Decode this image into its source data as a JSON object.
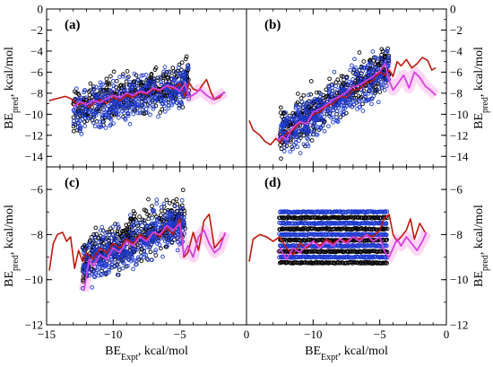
{
  "chart_data": {
    "type": "scatter",
    "layout": "2x2 shared axes",
    "xlabel": {
      "main": "BE",
      "sub": "Expt",
      "rest": ", kcal/mol"
    },
    "ylabel": {
      "main": "BE",
      "sub": "pred",
      "rest": ", kcal/mol"
    },
    "xlim": [
      -15,
      0
    ],
    "xticks": [
      "-15",
      "-10",
      "-5",
      "0"
    ],
    "colors": {
      "black_points": "#000000",
      "blue_points": "#1f3bd1",
      "red_line": "#c0180c",
      "magenta_line": "#d640e0",
      "pink_band": "#ffb4ee"
    },
    "panels": [
      {
        "label": "(a)",
        "ylim": [
          -15,
          0
        ],
        "yticks": [
          "0",
          "-2",
          "-4",
          "-6",
          "-8",
          "-10",
          "-12",
          "-14"
        ],
        "red_line": [
          [
            -14.8,
            -8.7
          ],
          [
            -14.2,
            -8.5
          ],
          [
            -13.6,
            -8.3
          ],
          [
            -13.2,
            -8.5
          ],
          [
            -12.9,
            -8.8
          ],
          [
            -12.6,
            -9.1
          ],
          [
            -12.2,
            -8.9
          ],
          [
            -11.8,
            -9.3
          ],
          [
            -11.4,
            -8.9
          ],
          [
            -11,
            -8.6
          ],
          [
            -10.5,
            -9
          ],
          [
            -10,
            -8.4
          ],
          [
            -9.5,
            -8.7
          ],
          [
            -9,
            -8.2
          ],
          [
            -8.5,
            -8.4
          ],
          [
            -8,
            -7.9
          ],
          [
            -7.5,
            -8.1
          ],
          [
            -7,
            -7.6
          ],
          [
            -6.5,
            -7.8
          ],
          [
            -6,
            -7.3
          ],
          [
            -5.5,
            -7.6
          ],
          [
            -5,
            -7.1
          ],
          [
            -4.6,
            -8.3
          ],
          [
            -4.3,
            -7
          ],
          [
            -4,
            -7.6
          ],
          [
            -3.6,
            -7.8
          ],
          [
            -3.3,
            -7.2
          ],
          [
            -3,
            -6.7
          ],
          [
            -2.7,
            -7.8
          ],
          [
            -2.4,
            -8.6
          ],
          [
            -2,
            -8.4
          ],
          [
            -1.7,
            -7.9
          ]
        ],
        "magenta_line": [
          [
            -13,
            -9.3
          ],
          [
            -12.5,
            -8.8
          ],
          [
            -12,
            -9.1
          ],
          [
            -11.5,
            -8.7
          ],
          [
            -11,
            -8.9
          ],
          [
            -10.5,
            -8.5
          ],
          [
            -10,
            -8.2
          ],
          [
            -9.5,
            -8.4
          ],
          [
            -9,
            -8
          ],
          [
            -8.5,
            -8.2
          ],
          [
            -8,
            -7.8
          ],
          [
            -7.5,
            -8
          ],
          [
            -7,
            -7.5
          ],
          [
            -6.5,
            -7.7
          ],
          [
            -6,
            -7.3
          ],
          [
            -5.5,
            -7.4
          ],
          [
            -5,
            -7.8
          ],
          [
            -4.6,
            -7.1
          ],
          [
            -4.3,
            -8.4
          ],
          [
            -3.8,
            -8
          ],
          [
            -3.5,
            -7.6
          ],
          [
            -3,
            -8.2
          ],
          [
            -2.5,
            -8.6
          ],
          [
            -2,
            -8.2
          ],
          [
            -1.6,
            -7.9
          ]
        ],
        "cloud": {
          "x_range": [
            -13,
            -4.3
          ],
          "center": [
            [
              -13,
              -9.8
            ],
            [
              -4.5,
              -7.0
            ]
          ],
          "spread": 1.4,
          "black_shift": 0.25
        }
      },
      {
        "label": "(b)",
        "ylim": [
          -15,
          0
        ],
        "yticks": [
          "0",
          "-2",
          "-4",
          "-6",
          "-8",
          "-10",
          "-12",
          "-14"
        ],
        "red_line": [
          [
            -14.8,
            -10.6
          ],
          [
            -14.5,
            -11.5
          ],
          [
            -14,
            -12
          ],
          [
            -13.6,
            -12.6
          ],
          [
            -13.2,
            -12.9
          ],
          [
            -12.8,
            -12.3
          ],
          [
            -12.5,
            -12.7
          ],
          [
            -12,
            -11.8
          ],
          [
            -11.5,
            -11.5
          ],
          [
            -11,
            -10.8
          ],
          [
            -10.5,
            -10.9
          ],
          [
            -10,
            -10
          ],
          [
            -9.5,
            -9.8
          ],
          [
            -9,
            -9.2
          ],
          [
            -8.5,
            -9
          ],
          [
            -8,
            -8.3
          ],
          [
            -7.5,
            -8.4
          ],
          [
            -7,
            -7.7
          ],
          [
            -6.5,
            -7.6
          ],
          [
            -6,
            -7
          ],
          [
            -5.5,
            -6.8
          ],
          [
            -5,
            -6
          ],
          [
            -4.6,
            -6.3
          ],
          [
            -4.3,
            -5.8
          ],
          [
            -4,
            -6.4
          ],
          [
            -3.7,
            -5
          ],
          [
            -3.4,
            -5.4
          ],
          [
            -3,
            -4.8
          ],
          [
            -2.6,
            -5.6
          ],
          [
            -2.2,
            -5.2
          ],
          [
            -1.8,
            -4.6
          ],
          [
            -1.4,
            -4.9
          ],
          [
            -1.1,
            -5.8
          ],
          [
            -0.8,
            -5.6
          ]
        ],
        "magenta_line": [
          [
            -12.7,
            -12.5
          ],
          [
            -12.3,
            -12.1
          ],
          [
            -12,
            -12.4
          ],
          [
            -11.5,
            -11.2
          ],
          [
            -11,
            -10.7
          ],
          [
            -10.5,
            -10.9
          ],
          [
            -10,
            -9.8
          ],
          [
            -9.5,
            -9.5
          ],
          [
            -9,
            -9.1
          ],
          [
            -8.5,
            -8.6
          ],
          [
            -8,
            -8.3
          ],
          [
            -7.5,
            -7.9
          ],
          [
            -7,
            -7.4
          ],
          [
            -6.5,
            -7.2
          ],
          [
            -6,
            -6.8
          ],
          [
            -5.5,
            -6.4
          ],
          [
            -5,
            -5.9
          ],
          [
            -4.6,
            -5.2
          ],
          [
            -4.3,
            -6.8
          ],
          [
            -4,
            -7.7
          ],
          [
            -3.6,
            -7
          ],
          [
            -3.2,
            -6.3
          ],
          [
            -2.8,
            -7.5
          ],
          [
            -2.4,
            -6
          ],
          [
            -2,
            -6.5
          ],
          [
            -1.6,
            -7.3
          ],
          [
            -1.2,
            -7.7
          ],
          [
            -0.8,
            -8.2
          ]
        ],
        "cloud": {
          "x_range": [
            -12.5,
            -4.3
          ],
          "center": [
            [
              -12.5,
              -12.0
            ],
            [
              -4.5,
              -5.6
            ]
          ],
          "spread": 1.5,
          "black_shift": 0.2
        }
      },
      {
        "label": "(c)",
        "ylim": [
          -12,
          -5
        ],
        "yticks": [
          "-6",
          "-8",
          "-10",
          "-12"
        ],
        "red_line": [
          [
            -14.8,
            -9.6
          ],
          [
            -14.5,
            -8.4
          ],
          [
            -14.2,
            -8
          ],
          [
            -13.8,
            -7.9
          ],
          [
            -13.5,
            -8.3
          ],
          [
            -13.2,
            -8.1
          ],
          [
            -12.9,
            -9.5
          ],
          [
            -12.6,
            -8.7
          ],
          [
            -12.3,
            -9.2
          ],
          [
            -12,
            -8.8
          ],
          [
            -11.5,
            -9.1
          ],
          [
            -11,
            -8.6
          ],
          [
            -10.5,
            -8.8
          ],
          [
            -10,
            -8.4
          ],
          [
            -9.5,
            -8.6
          ],
          [
            -9,
            -8.2
          ],
          [
            -8.5,
            -8.4
          ],
          [
            -8,
            -8
          ],
          [
            -7.5,
            -8.2
          ],
          [
            -7,
            -7.9
          ],
          [
            -6.5,
            -8.1
          ],
          [
            -6,
            -7.7
          ],
          [
            -5.5,
            -8
          ],
          [
            -5,
            -7.3
          ],
          [
            -4.7,
            -9
          ],
          [
            -4.4,
            -8.8
          ],
          [
            -4,
            -7.9
          ],
          [
            -3.6,
            -8.7
          ],
          [
            -3.2,
            -7.4
          ],
          [
            -2.8,
            -7.1
          ],
          [
            -2.4,
            -8.6
          ],
          [
            -2,
            -8.3
          ],
          [
            -1.6,
            -8
          ]
        ],
        "magenta_line": [
          [
            -12.2,
            -10.5
          ],
          [
            -11.8,
            -9.1
          ],
          [
            -11.5,
            -9.4
          ],
          [
            -11,
            -8.9
          ],
          [
            -10.5,
            -9.1
          ],
          [
            -10,
            -8.6
          ],
          [
            -9.5,
            -8.8
          ],
          [
            -9,
            -8.3
          ],
          [
            -8.5,
            -8.5
          ],
          [
            -8,
            -8.1
          ],
          [
            -7.5,
            -8.3
          ],
          [
            -7,
            -7.9
          ],
          [
            -6.5,
            -8
          ],
          [
            -6,
            -7.6
          ],
          [
            -5.5,
            -7.8
          ],
          [
            -5,
            -7.5
          ],
          [
            -4.7,
            -8.9
          ],
          [
            -4.4,
            -8.5
          ],
          [
            -4,
            -9
          ],
          [
            -3.6,
            -8.1
          ],
          [
            -3.2,
            -7.8
          ],
          [
            -2.8,
            -8.4
          ],
          [
            -2.4,
            -8.8
          ],
          [
            -2,
            -8.6
          ],
          [
            -1.6,
            -7.9
          ]
        ],
        "cloud": {
          "x_range": [
            -12.3,
            -4.6
          ],
          "center": [
            [
              -12.3,
              -9.2
            ],
            [
              -4.6,
              -7.3
            ]
          ],
          "spread": 0.75,
          "black_shift": 0.12
        }
      },
      {
        "label": "(d)",
        "ylim": [
          -12,
          -5
        ],
        "yticks": [
          "-6",
          "-8",
          "-10",
          "-12"
        ],
        "red_line": [
          [
            -14.8,
            -9.2
          ],
          [
            -14.5,
            -8.2
          ],
          [
            -14,
            -8
          ],
          [
            -13.5,
            -8.1
          ],
          [
            -13,
            -8.3
          ],
          [
            -12.5,
            -8.1
          ],
          [
            -12,
            -8.6
          ],
          [
            -11.5,
            -8.9
          ],
          [
            -11,
            -8.4
          ],
          [
            -10.5,
            -8.6
          ],
          [
            -10,
            -8.3
          ],
          [
            -9.5,
            -8.5
          ],
          [
            -9,
            -8.2
          ],
          [
            -8.5,
            -8.4
          ],
          [
            -8,
            -8.2
          ],
          [
            -7.5,
            -8.3
          ],
          [
            -7,
            -8.1
          ],
          [
            -6.5,
            -8.2
          ],
          [
            -6,
            -8
          ],
          [
            -5.5,
            -8.1
          ],
          [
            -5,
            -7.8
          ],
          [
            -4.7,
            -7.3
          ],
          [
            -4.3,
            -7.1
          ],
          [
            -4,
            -8
          ],
          [
            -3.7,
            -8.3
          ],
          [
            -3.4,
            -8.1
          ],
          [
            -3,
            -7.8
          ],
          [
            -2.7,
            -7.3
          ],
          [
            -2.4,
            -8.2
          ],
          [
            -2,
            -7.5
          ],
          [
            -1.6,
            -7.9
          ]
        ],
        "magenta_line": [
          [
            -12.5,
            -8.6
          ],
          [
            -12,
            -9.1
          ],
          [
            -11.5,
            -8.6
          ],
          [
            -11,
            -8.8
          ],
          [
            -10.5,
            -8.5
          ],
          [
            -10,
            -8.3
          ],
          [
            -9.5,
            -8.6
          ],
          [
            -9,
            -8.3
          ],
          [
            -8.5,
            -8.5
          ],
          [
            -8,
            -8.2
          ],
          [
            -7.5,
            -8.4
          ],
          [
            -7,
            -8.1
          ],
          [
            -6.5,
            -8.3
          ],
          [
            -6,
            -8
          ],
          [
            -5.5,
            -8.3
          ],
          [
            -5,
            -8.1
          ],
          [
            -4.6,
            -8.8
          ],
          [
            -4.3,
            -9
          ],
          [
            -4,
            -8.6
          ],
          [
            -3.7,
            -8.2
          ],
          [
            -3.4,
            -8.5
          ],
          [
            -3,
            -8.1
          ],
          [
            -2.6,
            -8.4
          ],
          [
            -2.2,
            -8.7
          ],
          [
            -1.8,
            -8.3
          ],
          [
            -1.5,
            -7.9
          ]
        ],
        "cloud": {
          "x_range": [
            -12.5,
            -4.4
          ],
          "bands": [
            -7.0,
            -7.5,
            -8.0,
            -8.5,
            -9.0
          ],
          "black_bands": [
            -7.25,
            -7.75,
            -8.25,
            -8.75,
            -9.25
          ]
        }
      }
    ]
  }
}
